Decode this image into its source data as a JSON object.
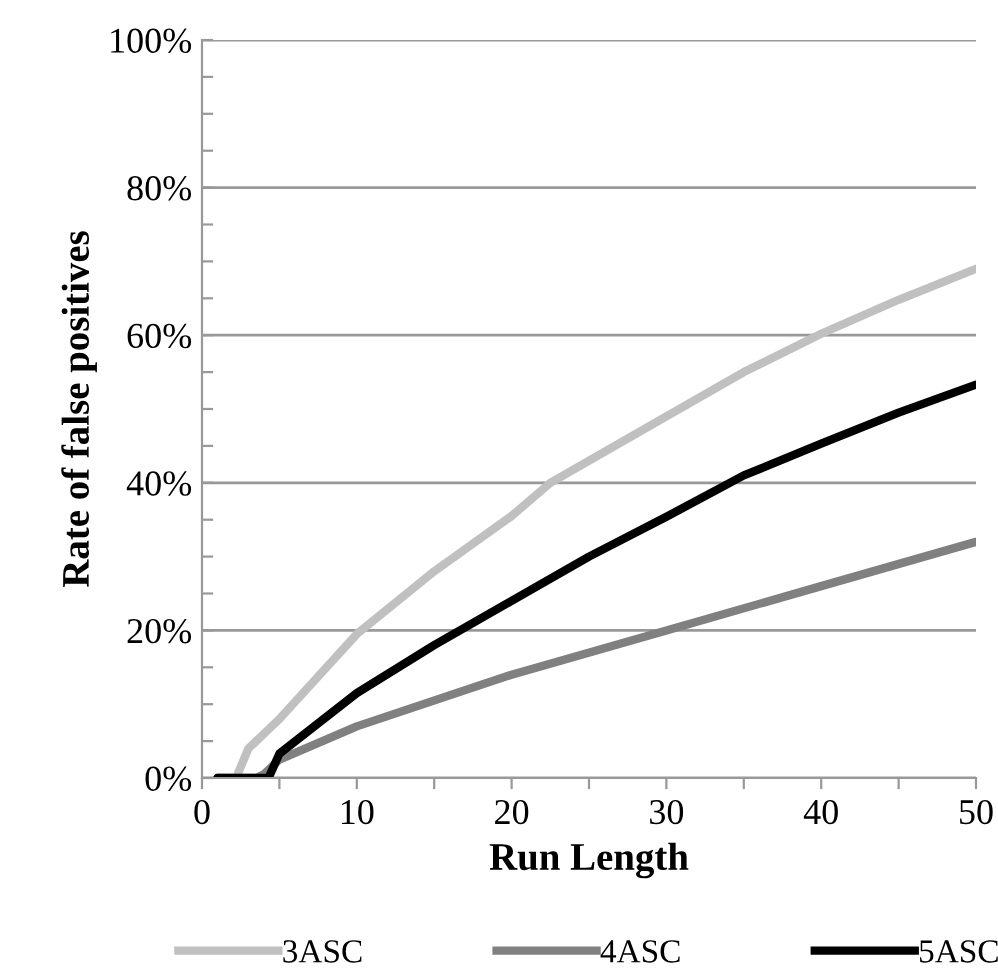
{
  "chart_data": {
    "type": "line",
    "xlabel": "Run Length",
    "ylabel": "Rate of false positives",
    "xlim": [
      0,
      50
    ],
    "ylim": [
      0,
      100
    ],
    "xticks": [
      0,
      {
        "value": 5,
        "label": null
      },
      10,
      {
        "value": 15,
        "label": null
      },
      20,
      {
        "value": 25,
        "label": null
      },
      30,
      {
        "value": 35,
        "label": null
      },
      40,
      {
        "value": 45,
        "label": null
      },
      50
    ],
    "yticks": [
      {
        "value": 0,
        "label": "0%"
      },
      {
        "value": 5,
        "label": null
      },
      {
        "value": 10,
        "label": null
      },
      {
        "value": 15,
        "label": null
      },
      {
        "value": 20,
        "label": "20%"
      },
      {
        "value": 25,
        "label": null
      },
      {
        "value": 30,
        "label": null
      },
      {
        "value": 35,
        "label": null
      },
      {
        "value": 40,
        "label": "40%"
      },
      {
        "value": 45,
        "label": null
      },
      {
        "value": 50,
        "label": null
      },
      {
        "value": 55,
        "label": null
      },
      {
        "value": 60,
        "label": "60%"
      },
      {
        "value": 65,
        "label": null
      },
      {
        "value": 70,
        "label": null
      },
      {
        "value": 75,
        "label": null
      },
      {
        "value": 80,
        "label": "80%"
      },
      {
        "value": 85,
        "label": null
      },
      {
        "value": 90,
        "label": null
      },
      {
        "value": 95,
        "label": null
      },
      {
        "value": 100,
        "label": "100%"
      }
    ],
    "grid": "y",
    "legend": "bottom",
    "marker": "none",
    "line_style": "solid",
    "series": [
      {
        "name": "3ASC",
        "color": "#c0c0c0",
        "x": [
          1,
          2.2,
          3,
          5,
          10,
          15,
          20,
          22.5,
          30,
          35,
          40,
          45,
          50
        ],
        "values": [
          0,
          0,
          4,
          8,
          19.5,
          28,
          35.5,
          40,
          49,
          55,
          60.2,
          64.8,
          69
        ]
      },
      {
        "name": "4ASC",
        "color": "#808080",
        "x": [
          1,
          3.5,
          4,
          5,
          10,
          20,
          30,
          40,
          50
        ],
        "values": [
          0,
          0,
          0.5,
          2.5,
          7,
          14,
          20,
          26,
          32
        ]
      },
      {
        "name": "5ASC",
        "color": "#000000",
        "x": [
          1,
          4.3,
          5,
          10,
          15,
          20,
          25,
          30,
          35,
          40,
          45,
          50
        ],
        "values": [
          0,
          0,
          3.3,
          11.5,
          18,
          24,
          30,
          35.4,
          41,
          45.3,
          49.5,
          53.3
        ]
      }
    ]
  }
}
